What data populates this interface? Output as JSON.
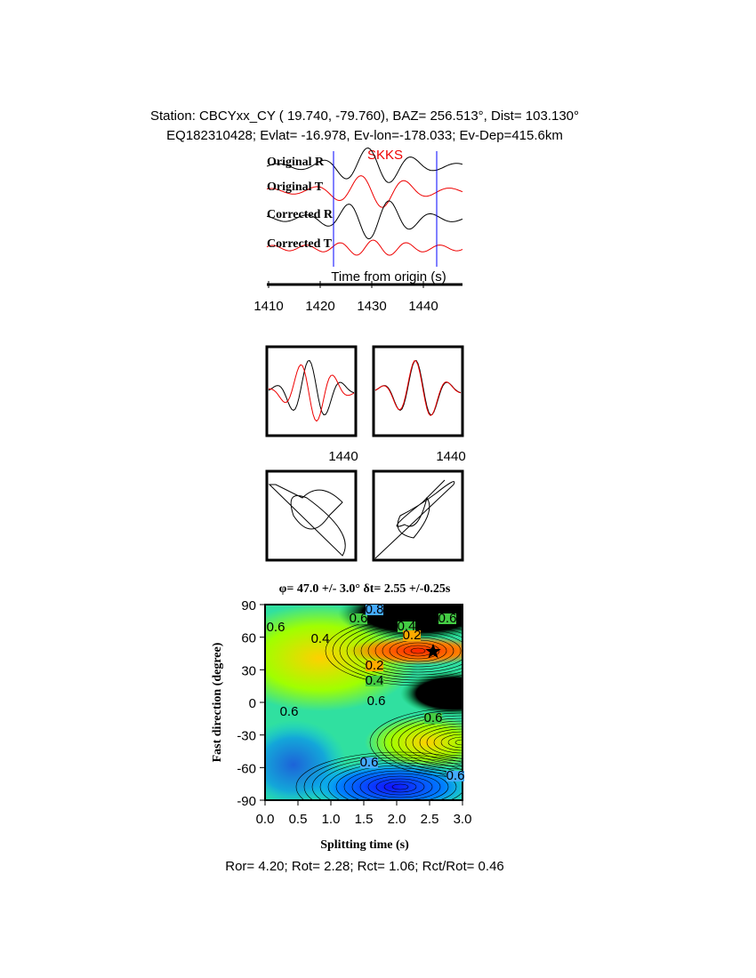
{
  "header": {
    "line1": "Station: CBCYxx_CY (  19.740,  -79.760), BAZ=  256.513°, Dist=  103.130°",
    "line2": "EQ182310428; Evlat= -16.978, Ev-lon=-178.033; Ev-Dep=415.6km"
  },
  "waveforms": {
    "phase": "SKKS",
    "traces": [
      "Original R",
      "Original T",
      "Corrected R",
      "Corrected T"
    ],
    "axis_title": "Time from origin (s)",
    "ticks": [
      "1410",
      "1420",
      "1430",
      "1440"
    ]
  },
  "particle_motion": {
    "tick_labels": [
      "1440",
      "1440"
    ]
  },
  "grid_search": {
    "title": "φ= 47.0 +/- 3.0° δt= 2.55 +/-0.25s",
    "y_label": "Fast direction (degree)",
    "x_label": "Splitting time (s)",
    "yticks": [
      "90",
      "60",
      "30",
      "0",
      "-30",
      "-60",
      "-90"
    ],
    "xticks": [
      "0.0",
      "0.5",
      "1.0",
      "1.5",
      "2.0",
      "2.5",
      "3.0"
    ],
    "contour_labels": [
      "0.6",
      "0.8",
      "0.4",
      "0.2",
      "0.6",
      "0.4",
      "0.2",
      "0.4",
      "0.6",
      "0.6",
      "0.6",
      "0.6",
      "0.6",
      "0.6"
    ]
  },
  "footer": "Ror= 4.20; Rot= 2.28; Rct= 1.06; Rct/Rot= 0.46"
}
